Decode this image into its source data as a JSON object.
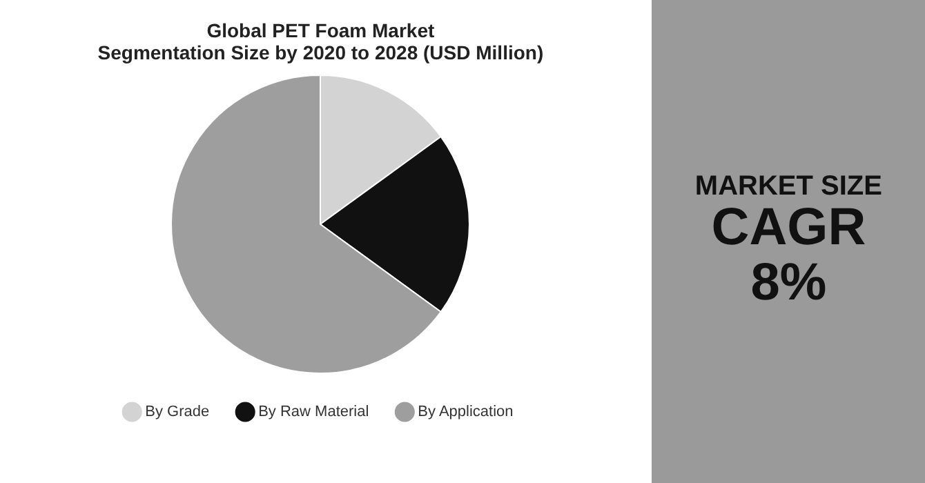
{
  "chart_data": {
    "type": "pie",
    "title": "Global PET Foam Market\nSegmentation Size by 2020 to 2028 (USD Million)",
    "categories": [
      "By Grade",
      "By Raw Material",
      "By Application"
    ],
    "values": [
      15,
      20,
      65
    ],
    "colors": [
      "#d3d3d3",
      "#111111",
      "#9e9e9e"
    ],
    "legend": "bottom",
    "annotations": [
      "MARKET SIZE",
      "CAGR",
      "8%"
    ]
  }
}
